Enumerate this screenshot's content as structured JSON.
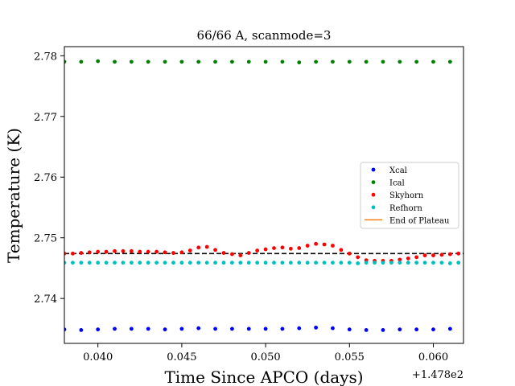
{
  "chart_data": {
    "type": "scatter",
    "title": "66/66 A, scanmode=3",
    "xlabel": "Time Since APCO (days)",
    "ylabel": "Temperature (K)",
    "x_offset_label": "+1.478e2",
    "xlim": [
      0.038,
      0.0618
    ],
    "ylim": [
      2.7326,
      2.7815
    ],
    "xticks": [
      0.04,
      0.045,
      0.05,
      0.055,
      0.06
    ],
    "xtick_labels": [
      "0.040",
      "0.045",
      "0.050",
      "0.055",
      "0.060"
    ],
    "yticks": [
      2.74,
      2.75,
      2.76,
      2.77,
      2.78
    ],
    "ytick_labels": [
      "2.74",
      "2.75",
      "2.76",
      "2.77",
      "2.78"
    ],
    "grid": false,
    "legend_position": "center-right",
    "series": [
      {
        "name": "Xcal",
        "kind": "points",
        "color": "#0000ff",
        "x": [
          0.038,
          0.039,
          0.04,
          0.041,
          0.042,
          0.043,
          0.044,
          0.045,
          0.046,
          0.047,
          0.048,
          0.049,
          0.05,
          0.051,
          0.052,
          0.053,
          0.054,
          0.055,
          0.056,
          0.057,
          0.058,
          0.059,
          0.06,
          0.061
        ],
        "y": [
          2.7349,
          2.7348,
          2.7349,
          2.735,
          2.735,
          2.735,
          2.7349,
          2.735,
          2.7351,
          2.735,
          2.735,
          2.735,
          2.735,
          2.735,
          2.7351,
          2.7352,
          2.7351,
          2.7349,
          2.7348,
          2.7348,
          2.7349,
          2.7349,
          2.7349,
          2.735
        ]
      },
      {
        "name": "Ical",
        "kind": "points",
        "color": "#008000",
        "x": [
          0.038,
          0.039,
          0.04,
          0.041,
          0.042,
          0.043,
          0.044,
          0.045,
          0.046,
          0.047,
          0.048,
          0.049,
          0.05,
          0.051,
          0.052,
          0.053,
          0.054,
          0.055,
          0.056,
          0.057,
          0.058,
          0.059,
          0.06,
          0.061
        ],
        "y": [
          2.779,
          2.779,
          2.7791,
          2.779,
          2.779,
          2.779,
          2.779,
          2.779,
          2.779,
          2.779,
          2.779,
          2.779,
          2.779,
          2.779,
          2.7789,
          2.779,
          2.779,
          2.779,
          2.779,
          2.779,
          2.779,
          2.779,
          2.779,
          2.779
        ]
      },
      {
        "name": "Skyhorn",
        "kind": "points",
        "color": "#ff0000",
        "x": [
          0.038,
          0.0385,
          0.039,
          0.0395,
          0.04,
          0.0405,
          0.041,
          0.0415,
          0.042,
          0.0425,
          0.043,
          0.0435,
          0.044,
          0.0445,
          0.045,
          0.0455,
          0.046,
          0.0465,
          0.047,
          0.0475,
          0.048,
          0.0485,
          0.049,
          0.0495,
          0.05,
          0.0505,
          0.051,
          0.0515,
          0.052,
          0.0525,
          0.053,
          0.0535,
          0.054,
          0.0545,
          0.055,
          0.0555,
          0.056,
          0.0565,
          0.057,
          0.0575,
          0.058,
          0.0585,
          0.059,
          0.0595,
          0.06,
          0.0605,
          0.061,
          0.0615
        ],
        "y": [
          2.7474,
          2.7474,
          2.7475,
          2.7476,
          2.7477,
          2.7477,
          2.7478,
          2.7478,
          2.7478,
          2.7477,
          2.7477,
          2.7477,
          2.7476,
          2.7475,
          2.7476,
          2.7479,
          2.7484,
          2.7485,
          2.748,
          2.7475,
          2.7473,
          2.7471,
          2.7475,
          2.7479,
          2.7481,
          2.7483,
          2.7484,
          2.7482,
          2.7483,
          2.7487,
          2.749,
          2.7489,
          2.7487,
          2.748,
          2.7474,
          2.7468,
          2.7463,
          2.7462,
          2.7462,
          2.7462,
          2.7464,
          2.7466,
          2.7468,
          2.7471,
          2.7471,
          2.7472,
          2.7473,
          2.7474
        ]
      },
      {
        "name": "Refhorn",
        "kind": "points",
        "color": "#00bfbf",
        "x": [
          0.038,
          0.0385,
          0.039,
          0.0395,
          0.04,
          0.0405,
          0.041,
          0.0415,
          0.042,
          0.0425,
          0.043,
          0.0435,
          0.044,
          0.0445,
          0.045,
          0.0455,
          0.046,
          0.0465,
          0.047,
          0.0475,
          0.048,
          0.0485,
          0.049,
          0.0495,
          0.05,
          0.0505,
          0.051,
          0.0515,
          0.052,
          0.0525,
          0.053,
          0.0535,
          0.054,
          0.0545,
          0.055,
          0.0555,
          0.056,
          0.0565,
          0.057,
          0.0575,
          0.058,
          0.0585,
          0.059,
          0.0595,
          0.06,
          0.0605,
          0.061,
          0.0615
        ],
        "y": [
          2.7459,
          2.7459,
          2.7459,
          2.7459,
          2.7459,
          2.7459,
          2.7459,
          2.7459,
          2.7459,
          2.7459,
          2.7459,
          2.7459,
          2.7459,
          2.7459,
          2.7459,
          2.7459,
          2.7459,
          2.7459,
          2.7459,
          2.7459,
          2.7459,
          2.7459,
          2.7459,
          2.7459,
          2.7459,
          2.7459,
          2.7459,
          2.7459,
          2.7459,
          2.7459,
          2.7459,
          2.7459,
          2.7459,
          2.7459,
          2.7459,
          2.7458,
          2.7459,
          2.7459,
          2.7459,
          2.7459,
          2.7459,
          2.7459,
          2.7459,
          2.7459,
          2.7459,
          2.7459,
          2.7458,
          2.7459
        ]
      },
      {
        "name": "End of Plateau",
        "kind": "line",
        "color": "#ff7f0e",
        "x": [],
        "y": []
      }
    ],
    "annotations": [
      {
        "kind": "dashed-line",
        "color": "#000000",
        "x": [
          0.038,
          0.0618
        ],
        "y": [
          2.7474,
          2.7474
        ]
      }
    ]
  }
}
